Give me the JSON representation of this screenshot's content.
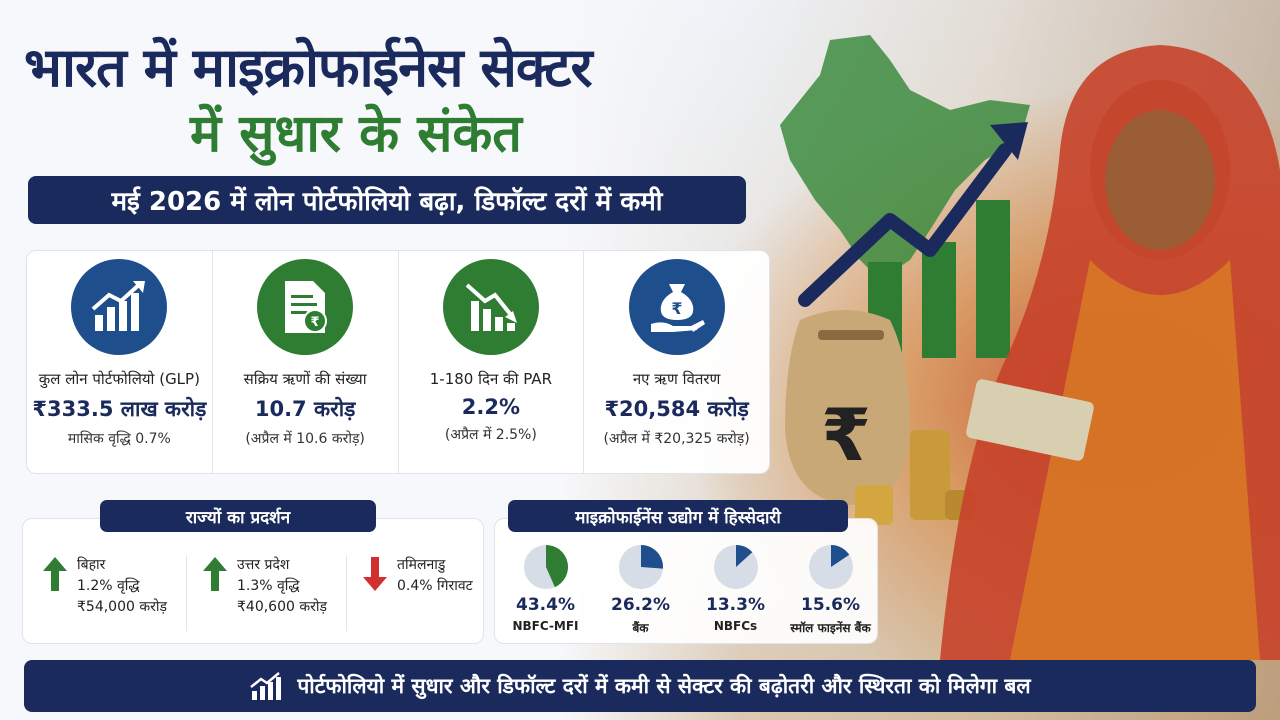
{
  "title": {
    "line1": "भारत में माइक्रोफाईनेस सेक्टर",
    "line2": "में सुधार के संकेत"
  },
  "subtitle": "मई 2026 में लोन पोर्टफोलियो बढ़ा, डिफॉल्ट दरों में कमी",
  "kpis": [
    {
      "icon": "growth-chart-icon",
      "label": "कुल लोन पोर्टफोलियो (GLP)",
      "value": "₹333.5 लाख करोड़",
      "sub": "मासिक वृद्धि 0.7%"
    },
    {
      "icon": "loan-document-icon",
      "label": "सक्रिय ऋणों की संख्या",
      "value": "10.7 करोड़",
      "sub": "(अप्रैल में 10.6 करोड़)"
    },
    {
      "icon": "declining-chart-icon",
      "label": "1-180 दिन की PAR",
      "value": "2.2%",
      "sub": "(अप्रैल में 2.5%)"
    },
    {
      "icon": "money-bag-hand-icon",
      "label": "नए ऋण वितरण",
      "value": "₹20,584 करोड़",
      "sub": "(अप्रैल में ₹20,325 करोड़)"
    }
  ],
  "states": {
    "heading": "राज्यों का प्रदर्शन",
    "items": [
      {
        "name": "बिहार",
        "change": "1.2% वृद्धि",
        "amount": "₹54,000 करोड़",
        "direction": "up"
      },
      {
        "name": "उत्तर प्रदेश",
        "change": "1.3% वृद्धि",
        "amount": "₹40,600 करोड़",
        "direction": "up"
      },
      {
        "name": "तमिलनाडु",
        "change": "0.4% गिरावट",
        "amount": "",
        "direction": "down"
      }
    ]
  },
  "share": {
    "heading": "माइक्रोफाईनेंस उद्योग में हिस्सेदारी",
    "items": [
      {
        "pct": "43.4%",
        "value": 43.4,
        "name": "NBFC-MFI",
        "color": "#2e7d32"
      },
      {
        "pct": "26.2%",
        "value": 26.2,
        "name": "बैंक",
        "color": "#1f4e8c"
      },
      {
        "pct": "13.3%",
        "value": 13.3,
        "name": "NBFCs",
        "color": "#1f4e8c"
      },
      {
        "pct": "15.6%",
        "value": 15.6,
        "name": "स्मॉल फाइनेंस बैंक",
        "color": "#1f4e8c"
      }
    ]
  },
  "footer": "पोर्टफोलियो में सुधार और डिफॉल्ट दरों में कमी से सेक्टर की बढ़ोतरी और स्थिरता को मिलेगा बल",
  "colors": {
    "navy": "#1b2a5c",
    "green": "#2e7d32",
    "blue": "#1f4e8c",
    "red": "#d32f2f"
  }
}
